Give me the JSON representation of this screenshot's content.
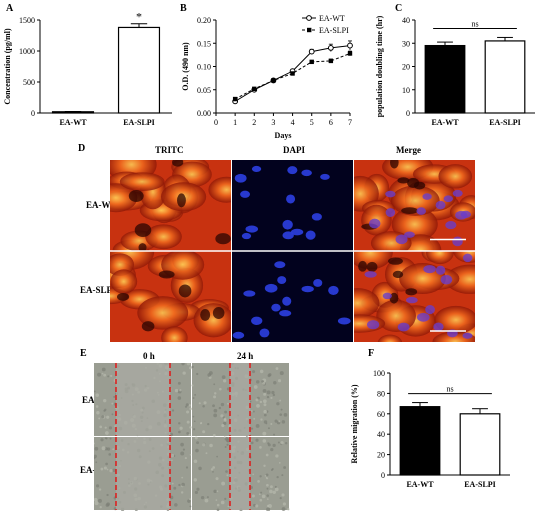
{
  "panels": {
    "A": "A",
    "B": "B",
    "C": "C",
    "D": "D",
    "E": "E",
    "F": "F"
  },
  "chart_data": [
    {
      "panel": "A",
      "type": "bar",
      "categories": [
        "EA-WT",
        "EA-SLPI"
      ],
      "values": [
        20,
        1380
      ],
      "errors": [
        5,
        60
      ],
      "fills": [
        "#000000",
        "#ffffff"
      ],
      "ylabel": "Concentration (pg/ml)",
      "ylim": [
        0,
        1500
      ],
      "yticks": [
        "0",
        "500",
        "1000",
        "1500"
      ],
      "significance": "*",
      "ytick_values": [
        0,
        500,
        1000,
        1500
      ]
    },
    {
      "panel": "B",
      "type": "line",
      "x": [
        1,
        2,
        3,
        4,
        5,
        6,
        7
      ],
      "xticks": [
        "0",
        "1",
        "2",
        "3",
        "4",
        "5",
        "6",
        "7"
      ],
      "yticks": [
        "0.00",
        "0.05",
        "0.10",
        "0.15",
        "0.20"
      ],
      "xlabel": "Days",
      "ylabel": "O.D. (490 nm)",
      "xlim": [
        0,
        7
      ],
      "ylim": [
        0,
        0.2
      ],
      "series": [
        {
          "name": "EA-WT",
          "values": [
            0.025,
            0.05,
            0.07,
            0.09,
            0.132,
            0.14,
            0.145
          ],
          "errors": [
            0.003,
            0.003,
            0.003,
            0.004,
            0.005,
            0.008,
            0.01
          ],
          "marker": "circle",
          "dash": "solid"
        },
        {
          "name": "EA-SLPI",
          "values": [
            0.03,
            0.052,
            0.07,
            0.085,
            0.11,
            0.112,
            0.128
          ],
          "errors": [
            0.002,
            0.003,
            0.003,
            0.003,
            0.003,
            0.004,
            0.005
          ],
          "marker": "square",
          "dash": "dashed"
        }
      ],
      "legend_position": "top-right",
      "xtick_values": [
        0,
        1,
        2,
        3,
        4,
        5,
        6,
        7
      ],
      "ytick_values": [
        0,
        0.05,
        0.1,
        0.15,
        0.2
      ]
    },
    {
      "panel": "C",
      "type": "bar",
      "categories": [
        "EA-WT",
        "EA-SLPI"
      ],
      "values": [
        29,
        31
      ],
      "errors": [
        1.5,
        1.5
      ],
      "fills": [
        "#000000",
        "#ffffff"
      ],
      "ylabel": "population doubling time (hr)",
      "ylim": [
        0,
        40
      ],
      "yticks": [
        "0",
        "10",
        "20",
        "30",
        "40"
      ],
      "significance": "ns",
      "ytick_values": [
        0,
        10,
        20,
        30,
        40
      ]
    },
    {
      "panel": "F",
      "type": "bar",
      "categories": [
        "EA-WT",
        "EA-SLPI"
      ],
      "values": [
        67,
        60
      ],
      "errors": [
        4,
        5
      ],
      "fills": [
        "#000000",
        "#ffffff"
      ],
      "ylabel": "Relative migration (%)",
      "ylim": [
        0,
        100
      ],
      "yticks": [
        "0",
        "20",
        "40",
        "60",
        "80",
        "100"
      ],
      "significance": "ns",
      "ytick_values": [
        0,
        20,
        40,
        60,
        80,
        100
      ]
    }
  ],
  "microscopy": {
    "columns": [
      "TRITC",
      "DAPI",
      "Merge"
    ],
    "rows": [
      "EA-WT",
      "EA-SLPI"
    ]
  },
  "wound": {
    "columns": [
      "0 h",
      "24 h"
    ],
    "rows": [
      "EA-WT",
      "EA-SLPI"
    ]
  },
  "colors": {
    "tritc": "#c83210",
    "dapi_bg": "#02021e",
    "nuclei": "#2a3cd8",
    "wound_bg": "#9a9d92",
    "wound_line": "#e01818"
  }
}
